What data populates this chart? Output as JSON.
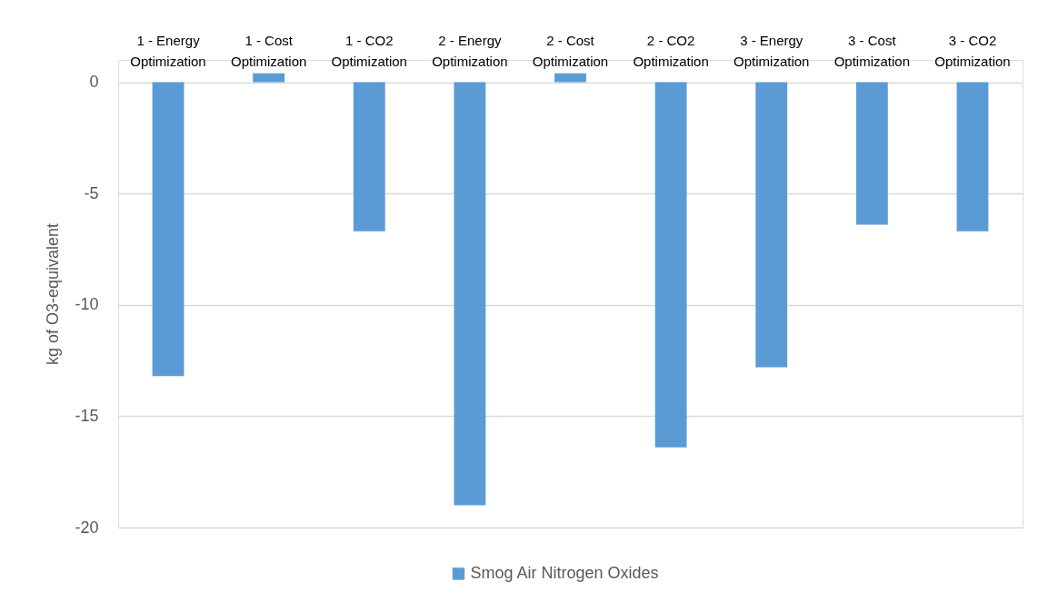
{
  "chart_data": {
    "type": "bar",
    "ylabel": "kg of O3-equivalent",
    "categories": [
      "1 - Energy Optimization",
      "1 - Cost Optimization",
      "1 - CO2 Optimization",
      "2 - Energy Optimization",
      "2 - Cost Optimization",
      "2 - CO2 Optimization",
      "3 - Energy Optimization",
      "3 - Cost Optimization",
      "3 - CO2 Optimization"
    ],
    "series": [
      {
        "name": "Smog Air Nitrogen Oxides",
        "color": "#5b9bd5",
        "values": [
          -13.2,
          0.4,
          -6.7,
          -19.0,
          0.4,
          -16.4,
          -12.8,
          -6.4,
          -6.7
        ]
      }
    ],
    "ylim": [
      -20,
      1
    ],
    "yticks": [
      -20,
      -15,
      -10,
      -5,
      0
    ],
    "grid": "y",
    "legend": "bottom"
  }
}
